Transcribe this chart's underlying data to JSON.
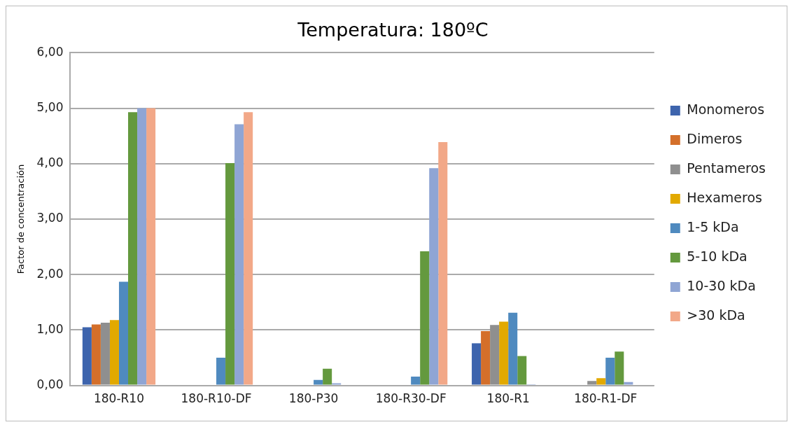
{
  "chart_data": {
    "type": "bar",
    "title": "Temperatura: 180ºC",
    "ylabel": "Factor de concentración",
    "categories": [
      "180-R10",
      "180-R10-DF",
      "180-P30",
      "180-R30-DF",
      "180-R1",
      "180-R1-DF"
    ],
    "series": [
      {
        "name": "Monomeros",
        "color": "#3d64ad",
        "values": [
          1.05,
          0,
          0,
          0,
          0.76,
          0
        ]
      },
      {
        "name": "Dimeros",
        "color": "#d46f2a",
        "values": [
          1.1,
          0,
          0,
          0,
          0.98,
          0
        ]
      },
      {
        "name": "Pentameros",
        "color": "#8f8f8f",
        "values": [
          1.13,
          0,
          0,
          0,
          1.09,
          0.08
        ]
      },
      {
        "name": "Hexameros",
        "color": "#e2a900",
        "values": [
          1.18,
          0,
          0,
          0,
          1.15,
          0.13
        ]
      },
      {
        "name": "1-5 kDa",
        "color": "#4f8abf",
        "values": [
          1.87,
          0.5,
          0.1,
          0.16,
          1.31,
          0.5
        ]
      },
      {
        "name": "5-10 kDa",
        "color": "#64993e",
        "values": [
          4.93,
          4.01,
          0.3,
          2.42,
          0.53,
          0.61
        ]
      },
      {
        "name": "10-30 kDa",
        "color": "#8fa5d4",
        "values": [
          5.0,
          4.71,
          0.04,
          3.92,
          0.02,
          0.06
        ]
      },
      {
        "name": ">30 kDa",
        "color": "#f2a888",
        "values": [
          5.0,
          4.93,
          0,
          4.39,
          0,
          0
        ]
      }
    ],
    "ylim": [
      0,
      6
    ],
    "yticks": [
      {
        "value": 0,
        "label": "0,00"
      },
      {
        "value": 1,
        "label": "1,00"
      },
      {
        "value": 2,
        "label": "2,00"
      },
      {
        "value": 3,
        "label": "3,00"
      },
      {
        "value": 4,
        "label": "4,00"
      },
      {
        "value": 5,
        "label": "5,00"
      },
      {
        "value": 6,
        "label": "6,00"
      }
    ],
    "grid": "y",
    "legend": "right"
  }
}
